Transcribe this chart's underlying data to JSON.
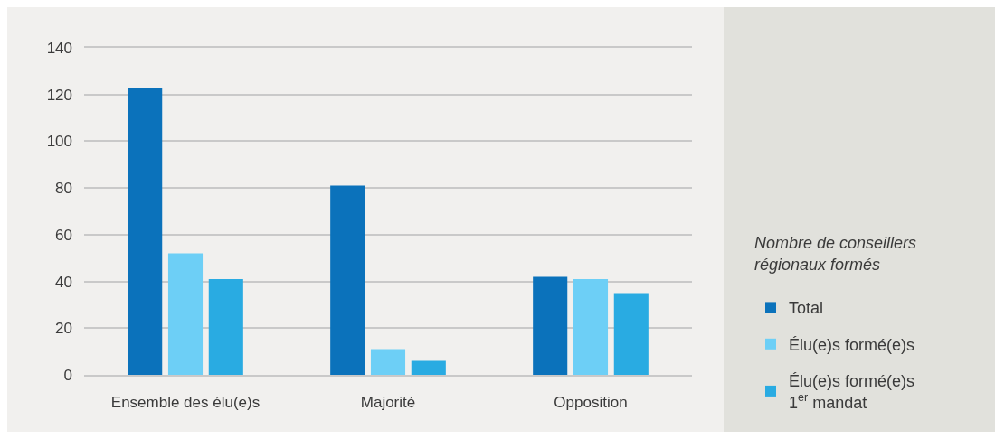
{
  "chart_data": {
    "type": "bar",
    "categories": [
      "Ensemble des élu(e)s",
      "Majorité",
      "Opposition"
    ],
    "series": [
      {
        "name": "Total",
        "color": "#0b72bb",
        "values": [
          123,
          81,
          42
        ]
      },
      {
        "name": "Élu(e)s formé(e)s",
        "color": "#6dcff6",
        "values": [
          52,
          11,
          41
        ]
      },
      {
        "name": "Élu(e)s formé(e)s\n1$^{er}$ mandat",
        "color": "#29abe2",
        "values": [
          41,
          6,
          35
        ]
      }
    ],
    "legend_title": "Nombre de conseillers\nrégionaux formés",
    "ylim": [
      0,
      140
    ],
    "yticks": [
      0,
      20,
      40,
      60,
      80,
      100,
      120,
      140
    ],
    "grid": "y",
    "legend": "right"
  }
}
